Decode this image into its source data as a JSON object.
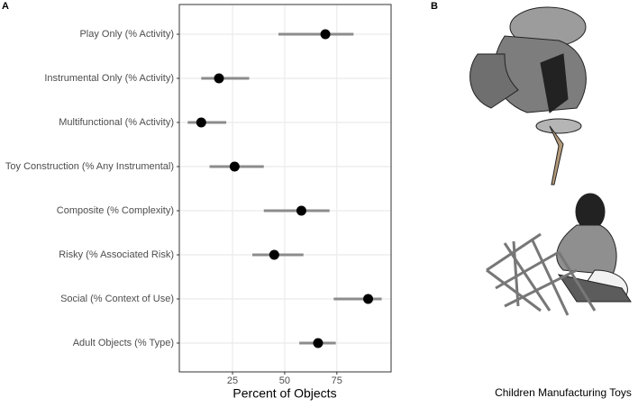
{
  "panel_a_label": "A",
  "panel_b_label": "B",
  "caption": "Children Manufacturing Toys",
  "chart_data": {
    "type": "dot-interval",
    "x_label": "Percent of Objects",
    "categories": [
      "Play Only (% Activity)",
      "Instrumental Only (% Activity)",
      "Multifunctional (% Activity)",
      "Toy Construction (% Any Instrumental)",
      "Composite (% Complexity)",
      "Risky (% Associated Risk)",
      "Social (% Context of Use)",
      "Adult Objects (% Type)"
    ],
    "values": [
      69.5,
      18.5,
      10,
      26,
      58,
      45,
      90,
      66
    ],
    "low": [
      47,
      10,
      3.5,
      14,
      40,
      34.5,
      73.5,
      57
    ],
    "high": [
      83,
      33,
      22,
      40,
      71.5,
      59,
      96.5,
      74.5
    ],
    "color": "#000000",
    "interval_color": "#8c8c8c",
    "xlim": [
      -0.5,
      101
    ],
    "xticks": [
      25,
      50,
      75
    ],
    "grid": true
  }
}
